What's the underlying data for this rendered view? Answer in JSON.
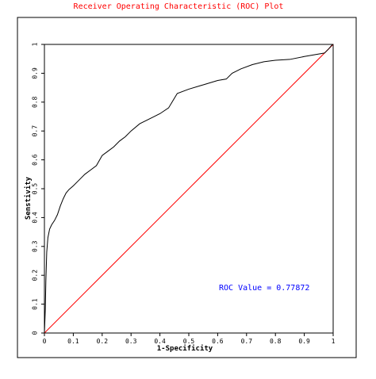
{
  "chart_data": {
    "type": "line",
    "title": "Receiver Operating Characteristic (ROC) Plot",
    "xlabel": "1-Specificity",
    "ylabel": "Senstivity",
    "xlim": [
      0,
      1
    ],
    "ylim": [
      0,
      1
    ],
    "x_ticks": [
      "0",
      "0.1",
      "0.2",
      "0.3",
      "0.4",
      "0.5",
      "0.6",
      "0.7",
      "0.8",
      "0.9",
      "1"
    ],
    "y_ticks": [
      "0",
      "0.1",
      "0.2",
      "0.3",
      "0.4",
      "0.5",
      "0.6",
      "0.7",
      "0.8",
      "0.9",
      "1"
    ],
    "grid": false,
    "annotation": "ROC Value = 0.77872",
    "colors": {
      "title": "#ff0000",
      "roc_curve": "#000000",
      "diagonal": "#ff0000",
      "annotation": "#0000ff"
    },
    "series": [
      {
        "values": [
          [
            0.0,
            0.0
          ],
          [
            0.003,
            0.08
          ],
          [
            0.005,
            0.18
          ],
          [
            0.008,
            0.28
          ],
          [
            0.012,
            0.33
          ],
          [
            0.018,
            0.36
          ],
          [
            0.025,
            0.375
          ],
          [
            0.035,
            0.39
          ],
          [
            0.045,
            0.41
          ],
          [
            0.055,
            0.44
          ],
          [
            0.065,
            0.465
          ],
          [
            0.075,
            0.485
          ],
          [
            0.085,
            0.497
          ],
          [
            0.1,
            0.51
          ],
          [
            0.12,
            0.53
          ],
          [
            0.14,
            0.55
          ],
          [
            0.16,
            0.565
          ],
          [
            0.18,
            0.58
          ],
          [
            0.2,
            0.615
          ],
          [
            0.22,
            0.63
          ],
          [
            0.24,
            0.645
          ],
          [
            0.26,
            0.665
          ],
          [
            0.28,
            0.68
          ],
          [
            0.3,
            0.7
          ],
          [
            0.33,
            0.725
          ],
          [
            0.37,
            0.745
          ],
          [
            0.4,
            0.76
          ],
          [
            0.43,
            0.78
          ],
          [
            0.46,
            0.83
          ],
          [
            0.5,
            0.845
          ],
          [
            0.55,
            0.86
          ],
          [
            0.6,
            0.875
          ],
          [
            0.63,
            0.88
          ],
          [
            0.65,
            0.9
          ],
          [
            0.68,
            0.915
          ],
          [
            0.72,
            0.93
          ],
          [
            0.76,
            0.94
          ],
          [
            0.8,
            0.945
          ],
          [
            0.85,
            0.948
          ],
          [
            0.9,
            0.958
          ],
          [
            0.94,
            0.965
          ],
          [
            0.97,
            0.97
          ],
          [
            0.985,
            0.985
          ],
          [
            0.995,
            0.997
          ],
          [
            1.0,
            1.0
          ]
        ]
      }
    ],
    "reference_line": [
      [
        0,
        0
      ],
      [
        1,
        1
      ]
    ]
  }
}
